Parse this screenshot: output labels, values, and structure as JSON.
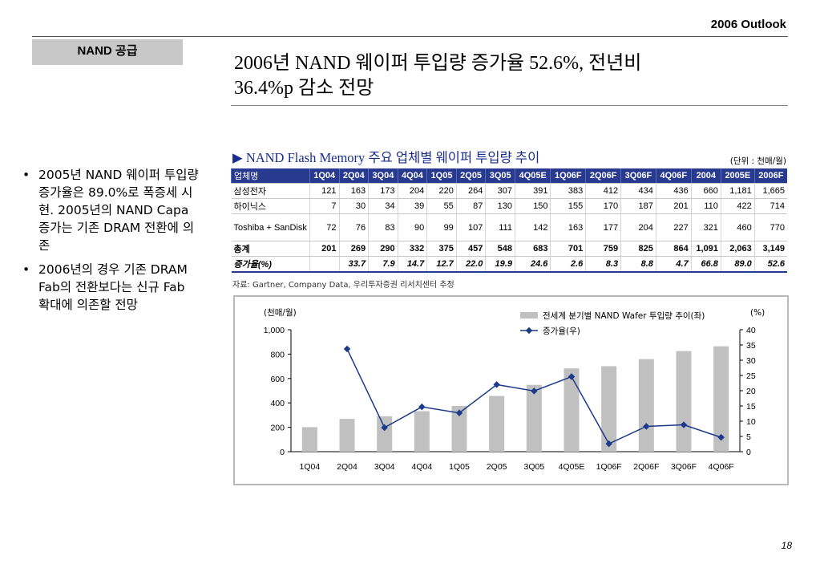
{
  "header": {
    "title": "2006 Outlook"
  },
  "section_tab": {
    "label": "NAND 공급"
  },
  "main_title": {
    "line1": "2006년 NAND 웨이퍼 투입량 증가율 52.6%, 전년비",
    "line2": "36.4%p 감소 전망"
  },
  "bullets": [
    {
      "marker": "•",
      "text": "2005년 NAND 웨이퍼 투입량 증가율은 89.0%로 폭증세 시현. 2005년의 NAND Capa 증가는 기존 DRAM 전환에 의존"
    },
    {
      "marker": "•",
      "text": "2006년의 경우 기존 DRAM Fab의 전환보다는 신규 Fab 확대에 의존할 전망"
    }
  ],
  "table": {
    "caption": "▶ NAND Flash Memory 주요 업체별 웨이퍼 투입량 추이",
    "unit_note": "(단위 : 천매/월)",
    "header": [
      "업체명",
      "1Q04",
      "2Q04",
      "3Q04",
      "4Q04",
      "1Q05",
      "2Q05",
      "3Q05",
      "4Q05E",
      "1Q06F",
      "2Q06F",
      "3Q06F",
      "4Q06F",
      "2004",
      "2005E",
      "2006F"
    ],
    "rows": [
      {
        "name": "삼성전자",
        "values": [
          "121",
          "163",
          "173",
          "204",
          "220",
          "264",
          "307",
          "391",
          "383",
          "412",
          "434",
          "436",
          "660",
          "1,181",
          "1,665"
        ]
      },
      {
        "name": "하이닉스",
        "values": [
          "7",
          "30",
          "34",
          "39",
          "55",
          "87",
          "130",
          "150",
          "155",
          "170",
          "187",
          "201",
          "110",
          "422",
          "714"
        ]
      },
      {
        "name": "Toshiba + SanDisk",
        "values": [
          "72",
          "76",
          "83",
          "90",
          "99",
          "107",
          "111",
          "142",
          "163",
          "177",
          "204",
          "227",
          "321",
          "460",
          "770"
        ]
      },
      {
        "name": "총계",
        "values": [
          "201",
          "269",
          "290",
          "332",
          "375",
          "457",
          "548",
          "683",
          "701",
          "759",
          "825",
          "864",
          "1,091",
          "2,063",
          "3,149"
        ]
      },
      {
        "name": "증가율(%)",
        "values": [
          "",
          "33.7",
          "7.9",
          "14.7",
          "12.7",
          "22.0",
          "19.9",
          "24.6",
          "2.6",
          "8.3",
          "8.8",
          "4.7",
          "66.8",
          "89.0",
          "52.6"
        ]
      }
    ],
    "source_note": "자료: Gartner, Company Data, 우리투자증권 리서치센터 추정"
  },
  "chart_data": {
    "type": "bar",
    "categories": [
      "1Q04",
      "2Q04",
      "3Q04",
      "4Q04",
      "1Q05",
      "2Q05",
      "3Q05",
      "4Q05E",
      "1Q06F",
      "2Q06F",
      "3Q06F",
      "4Q06F"
    ],
    "series": [
      {
        "name": "전세계 분기별 NAND Wafer 투입량 추이(좌)",
        "type": "bar",
        "axis": "left",
        "values": [
          201,
          269,
          290,
          332,
          375,
          457,
          548,
          683,
          701,
          759,
          825,
          864
        ]
      },
      {
        "name": "증가율(우)",
        "type": "line",
        "axis": "right",
        "values": [
          null,
          33.7,
          7.9,
          14.7,
          12.7,
          22.0,
          19.9,
          24.6,
          2.6,
          8.3,
          8.8,
          4.7
        ]
      }
    ],
    "y_left": {
      "label": "(천매/월)",
      "ylim": [
        0,
        1000
      ],
      "ticks": [
        "0",
        "200",
        "400",
        "600",
        "800",
        "1,000"
      ]
    },
    "y_right": {
      "label": "(%)",
      "ylim": [
        0,
        40
      ],
      "ticks": [
        "0",
        "5",
        "10",
        "15",
        "20",
        "25",
        "30",
        "35",
        "40"
      ]
    },
    "grid": false,
    "legend_position": "top-right",
    "colors": {
      "bar": "#c0c0c0",
      "line": "#1b3a8c"
    }
  },
  "page_number": "18"
}
